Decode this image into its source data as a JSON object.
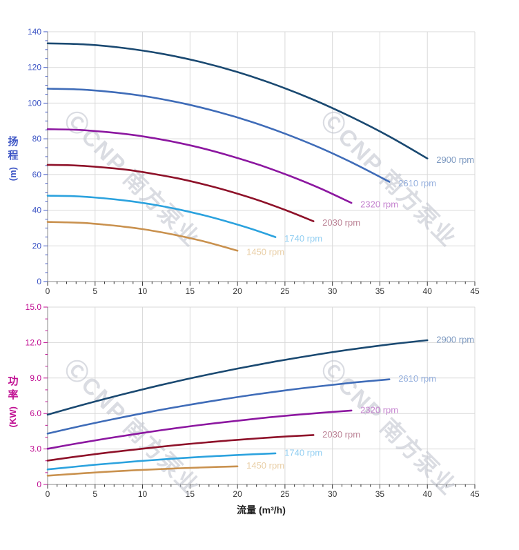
{
  "watermark": {
    "text": "ⒸCNP 南方泵业"
  },
  "x_axis": {
    "title": "流量 (m³/h)",
    "tick_labels": [
      "0",
      "5",
      "10",
      "15",
      "20",
      "25",
      "30",
      "35",
      "40",
      "45"
    ]
  },
  "chart_data": [
    {
      "type": "line",
      "title": "",
      "xlabel": "流量 (m³/h)",
      "ylabel": "扬程 (m)",
      "ylabel_main": "扬程",
      "ylabel_unit": "(m)",
      "xlim": [
        0,
        45
      ],
      "ylim": [
        0,
        140
      ],
      "x_major": 5,
      "x_minor": 1,
      "y_major": 20,
      "y_minor": 5,
      "y_tick_labels": [
        "0",
        "20",
        "40",
        "60",
        "80",
        "100",
        "120",
        "140"
      ],
      "axis_color": "#3d55c5",
      "grid": true,
      "legend_position": "at-line-end",
      "series": [
        {
          "name": "2900 rpm",
          "rpm": 2900,
          "color": "#1a4971",
          "label_color": "#7e9ac1",
          "x": [
            0,
            4,
            8,
            12,
            16,
            20,
            24,
            28,
            32,
            36,
            40
          ],
          "y": [
            133.5,
            132.9,
            130.9,
            127.7,
            123.2,
            117.4,
            110.3,
            101.9,
            92.2,
            81.3,
            69.0
          ]
        },
        {
          "name": "2610 rpm",
          "rpm": 2610,
          "color": "#3f6cb8",
          "label_color": "#93aedd",
          "x": [
            0,
            3.6,
            7.2,
            10.8,
            14.4,
            18,
            21.6,
            25.2,
            28.8,
            32.4,
            36
          ],
          "y": [
            108.1,
            107.6,
            106.0,
            103.4,
            99.7,
            95.0,
            89.3,
            82.5,
            74.7,
            65.8,
            55.9
          ]
        },
        {
          "name": "2320 rpm",
          "rpm": 2320,
          "color": "#8c17a0",
          "label_color": "#c583cf",
          "x": [
            0,
            3.2,
            6.4,
            9.6,
            12.8,
            16,
            19.2,
            22.4,
            25.6,
            28.8,
            32
          ],
          "y": [
            85.4,
            85.0,
            83.7,
            81.7,
            78.8,
            75.1,
            70.5,
            65.2,
            59.0,
            52.0,
            44.1
          ]
        },
        {
          "name": "2030 rpm",
          "rpm": 2030,
          "color": "#8e1129",
          "label_color": "#bb8295",
          "x": [
            0,
            2.8,
            5.6,
            8.4,
            11.2,
            14,
            16.8,
            19.6,
            22.4,
            25.2,
            28
          ],
          "y": [
            65.4,
            65.1,
            64.1,
            62.6,
            60.3,
            57.5,
            54.0,
            49.9,
            45.2,
            39.8,
            33.8
          ]
        },
        {
          "name": "1740 rpm",
          "rpm": 1740,
          "color": "#2ba2de",
          "label_color": "#93cff2",
          "x": [
            0,
            2.4,
            4.8,
            7.2,
            9.6,
            12,
            14.4,
            16.8,
            19.2,
            21.6,
            24
          ],
          "y": [
            48.1,
            47.9,
            47.2,
            46.0,
            44.4,
            42.3,
            39.7,
            36.7,
            33.2,
            29.3,
            24.9
          ]
        },
        {
          "name": "1450 rpm",
          "rpm": 1450,
          "color": "#c9914e",
          "label_color": "#e9cfa7",
          "x": [
            0,
            2,
            4,
            6,
            8,
            10,
            12,
            14,
            16,
            18,
            20
          ],
          "y": [
            33.4,
            33.2,
            32.8,
            31.9,
            30.8,
            29.4,
            27.6,
            25.5,
            23.1,
            20.3,
            17.3
          ]
        }
      ]
    },
    {
      "type": "line",
      "title": "",
      "xlabel": "流量 (m³/h)",
      "ylabel": "功率 (KW)",
      "ylabel_main": "功率",
      "ylabel_unit": "(KW)",
      "xlim": [
        0,
        45
      ],
      "ylim": [
        0,
        15
      ],
      "x_major": 5,
      "x_minor": 1,
      "y_major": 3,
      "y_minor": 1,
      "y_tick_labels": [
        "0",
        "3.0",
        "6.0",
        "9.0",
        "12.0",
        "15.0"
      ],
      "axis_color": "#c00e92",
      "grid": true,
      "legend_position": "at-line-end",
      "series": [
        {
          "name": "2900 rpm",
          "rpm": 2900,
          "color": "#1a4971",
          "label_color": "#7e9ac1",
          "x": [
            0,
            4,
            8,
            12,
            16,
            20,
            24,
            28,
            32,
            36,
            40
          ],
          "y": [
            5.9,
            6.8,
            7.64,
            8.42,
            9.14,
            9.8,
            10.4,
            10.94,
            11.42,
            11.84,
            12.2
          ]
        },
        {
          "name": "2610 rpm",
          "rpm": 2610,
          "color": "#3f6cb8",
          "label_color": "#93aedd",
          "x": [
            0,
            3.6,
            7.2,
            10.8,
            14.4,
            18,
            21.6,
            25.2,
            28.8,
            32.4,
            36
          ],
          "y": [
            4.3,
            4.96,
            5.57,
            6.14,
            6.66,
            7.14,
            7.58,
            7.97,
            8.32,
            8.63,
            8.89
          ]
        },
        {
          "name": "2320 rpm",
          "rpm": 2320,
          "color": "#8c17a0",
          "label_color": "#c583cf",
          "x": [
            0,
            3.2,
            6.4,
            9.6,
            12.8,
            16,
            19.2,
            22.4,
            25.6,
            28.8,
            32
          ],
          "y": [
            3.02,
            3.48,
            3.91,
            4.31,
            4.68,
            5.02,
            5.32,
            5.6,
            5.85,
            6.06,
            6.25
          ]
        },
        {
          "name": "2030 rpm",
          "rpm": 2030,
          "color": "#8e1129",
          "label_color": "#bb8295",
          "x": [
            0,
            2.8,
            5.6,
            8.4,
            11.2,
            14,
            16.8,
            19.6,
            22.4,
            25.2,
            28
          ],
          "y": [
            2.02,
            2.33,
            2.62,
            2.88,
            3.13,
            3.36,
            3.56,
            3.75,
            3.91,
            4.06,
            4.18
          ]
        },
        {
          "name": "1740 rpm",
          "rpm": 1740,
          "color": "#2ba2de",
          "label_color": "#93cff2",
          "x": [
            0,
            2.4,
            4.8,
            7.2,
            9.6,
            12,
            14.4,
            16.8,
            19.2,
            21.6,
            24
          ],
          "y": [
            1.27,
            1.46,
            1.65,
            1.81,
            1.97,
            2.11,
            2.24,
            2.36,
            2.46,
            2.55,
            2.63
          ]
        },
        {
          "name": "1450 rpm",
          "rpm": 1450,
          "color": "#c9914e",
          "label_color": "#e9cfa7",
          "x": [
            0,
            2,
            4,
            6,
            8,
            10,
            12,
            14,
            16,
            18,
            20
          ],
          "y": [
            0.74,
            0.85,
            0.96,
            1.06,
            1.15,
            1.23,
            1.3,
            1.37,
            1.43,
            1.48,
            1.53
          ]
        }
      ]
    }
  ]
}
